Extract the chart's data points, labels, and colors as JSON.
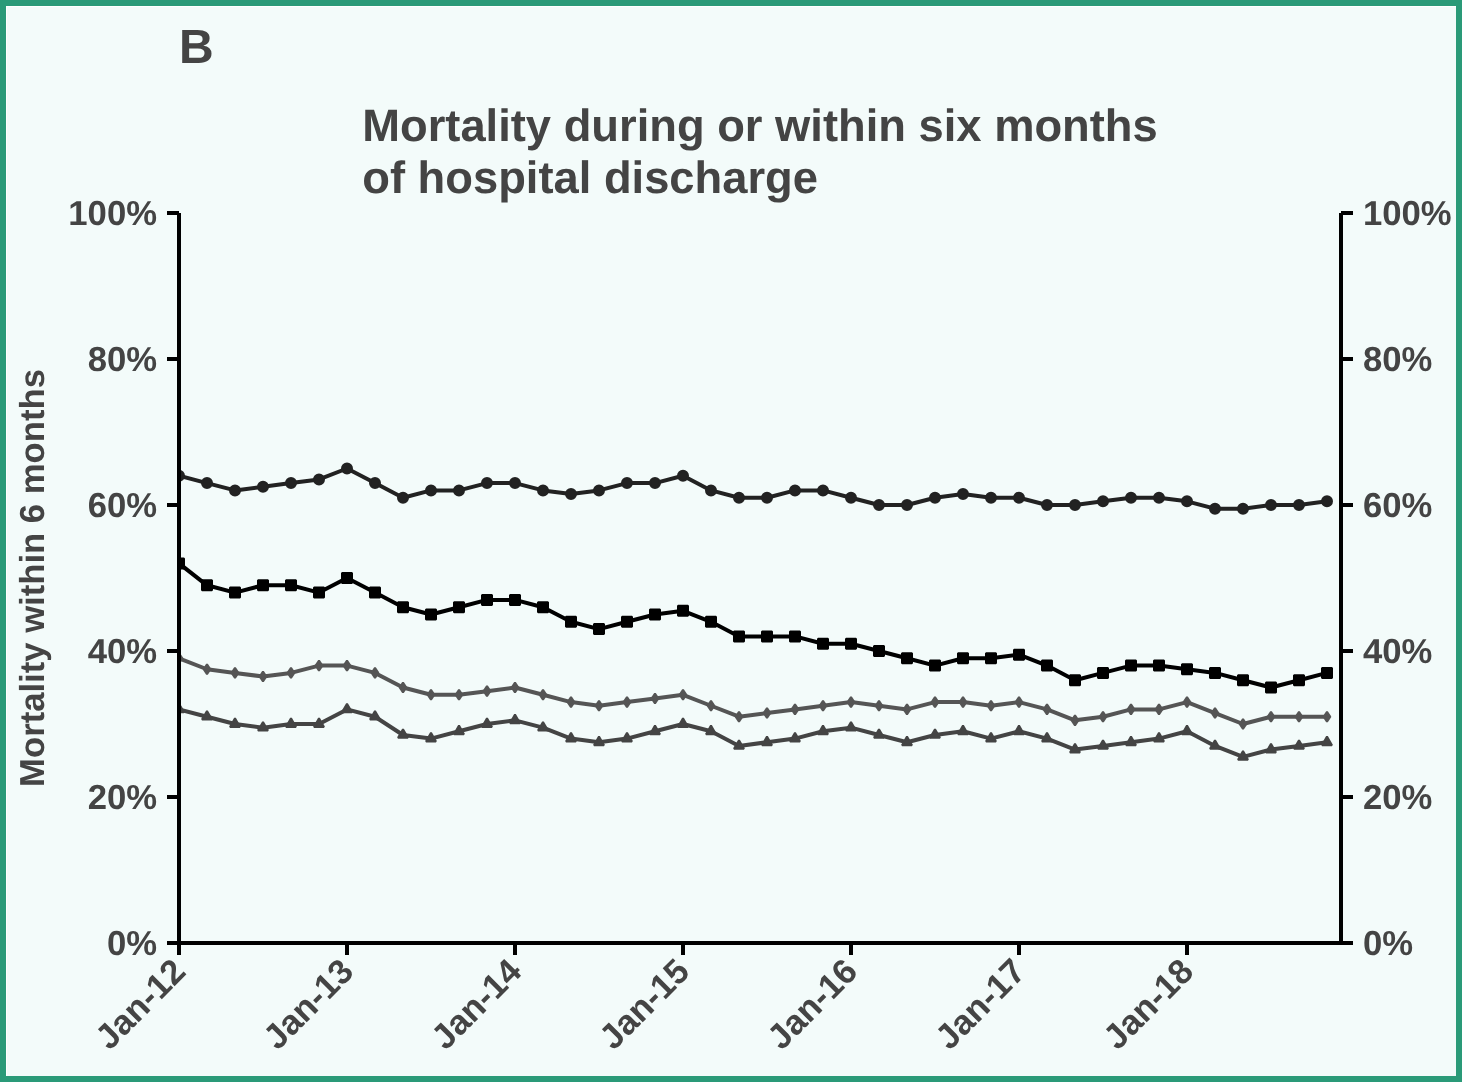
{
  "chart_data": {
    "type": "line",
    "title": "Mortality during or within six months\nof hospital discharge",
    "ylabel": "Mortality within 6 months",
    "annotations": [
      "B"
    ],
    "x": [
      "2012-01",
      "2012-03",
      "2012-05",
      "2012-07",
      "2012-09",
      "2012-11",
      "2013-01",
      "2013-03",
      "2013-05",
      "2013-07",
      "2013-09",
      "2013-11",
      "2014-01",
      "2014-03",
      "2014-05",
      "2014-07",
      "2014-09",
      "2014-11",
      "2015-01",
      "2015-03",
      "2015-05",
      "2015-07",
      "2015-09",
      "2015-11",
      "2016-01",
      "2016-03",
      "2016-05",
      "2016-07",
      "2016-09",
      "2016-11",
      "2017-01",
      "2017-03",
      "2017-05",
      "2017-07",
      "2017-09",
      "2017-11",
      "2018-01",
      "2018-03",
      "2018-05",
      "2018-07",
      "2018-09",
      "2018-11"
    ],
    "series": [
      {
        "color": "#222222",
        "marker": "circle",
        "values": [
          64,
          63,
          62,
          62.5,
          63,
          63.5,
          65,
          63,
          61,
          62,
          62,
          63,
          63,
          62,
          61.5,
          62,
          63,
          63,
          64,
          62,
          61,
          61,
          62,
          62,
          61,
          60,
          60,
          61,
          61.5,
          61,
          61,
          60,
          60,
          60.5,
          61,
          61,
          60.5,
          59.5,
          59.5,
          60,
          60,
          60.5
        ]
      },
      {
        "color": "#000000",
        "marker": "square",
        "values": [
          52,
          49,
          48,
          49,
          49,
          48,
          50,
          48,
          46,
          45,
          46,
          47,
          47,
          46,
          44,
          43,
          44,
          45,
          45.5,
          44,
          42,
          42,
          42,
          41,
          41,
          40,
          39,
          38,
          39,
          39,
          39.5,
          38,
          36,
          37,
          38,
          38,
          37.5,
          37,
          36,
          35,
          36,
          37
        ]
      },
      {
        "color": "#555555",
        "marker": "diamond",
        "values": [
          39,
          37.5,
          37,
          36.5,
          37,
          38,
          38,
          37,
          35,
          34,
          34,
          34.5,
          35,
          34,
          33,
          32.5,
          33,
          33.5,
          34,
          32.5,
          31,
          31.5,
          32,
          32.5,
          33,
          32.5,
          32,
          33,
          33,
          32.5,
          33,
          32,
          30.5,
          31,
          32,
          32,
          33,
          31.5,
          30,
          31,
          31,
          31
        ]
      },
      {
        "color": "#444444",
        "marker": "triangle",
        "values": [
          32,
          31,
          30,
          29.5,
          30,
          30,
          32,
          31,
          28.5,
          28,
          29,
          30,
          30.5,
          29.5,
          28,
          27.5,
          28,
          29,
          30,
          29,
          27,
          27.5,
          28,
          29,
          29.5,
          28.5,
          27.5,
          28.5,
          29,
          28,
          29,
          28,
          26.5,
          27,
          27.5,
          28,
          29,
          27,
          25.5,
          26.5,
          27,
          27.5
        ]
      }
    ],
    "xlim": [
      "2012-01",
      "2018-12"
    ],
    "xticks": [
      {
        "value": "2012-01",
        "label": "Jan-12"
      },
      {
        "value": "2013-01",
        "label": "Jan-13"
      },
      {
        "value": "2014-01",
        "label": "Jan-14"
      },
      {
        "value": "2015-01",
        "label": "Jan-15"
      },
      {
        "value": "2016-01",
        "label": "Jan-16"
      },
      {
        "value": "2017-01",
        "label": "Jan-17"
      },
      {
        "value": "2018-01",
        "label": "Jan-18"
      }
    ],
    "ylim": [
      0,
      100
    ],
    "yticks": [
      {
        "value": 0,
        "label": "0%"
      },
      {
        "value": 20,
        "label": "20%"
      },
      {
        "value": 40,
        "label": "40%"
      },
      {
        "value": 60,
        "label": "60%"
      },
      {
        "value": 80,
        "label": "80%"
      },
      {
        "value": 100,
        "label": "100%"
      }
    ],
    "y2lim": [
      0,
      100
    ],
    "y2ticks": [
      {
        "value": 0,
        "label": "0%"
      },
      {
        "value": 20,
        "label": "20%"
      },
      {
        "value": 40,
        "label": "40%"
      },
      {
        "value": 60,
        "label": "60%"
      },
      {
        "value": 80,
        "label": "80%"
      },
      {
        "value": 100,
        "label": "100%"
      }
    ],
    "grid": false,
    "line_style": "solid"
  }
}
